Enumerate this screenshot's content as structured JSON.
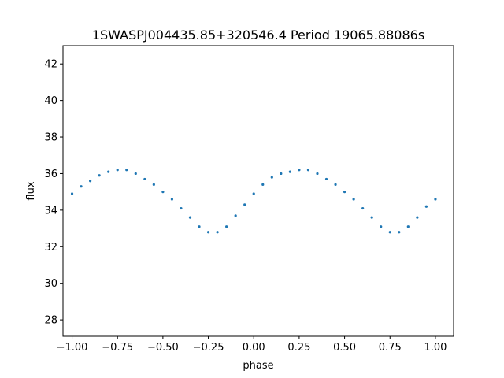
{
  "chart_data": {
    "type": "scatter",
    "title": "1SWASPJ004435.85+320546.4 Period 19065.88086s",
    "xlabel": "phase",
    "ylabel": "flux",
    "xlim": [
      -1.05,
      1.1
    ],
    "ylim": [
      27.1,
      43.0
    ],
    "x_ticks": [
      -1.0,
      -0.75,
      -0.5,
      -0.25,
      0.0,
      0.25,
      0.5,
      0.75,
      1.0
    ],
    "x_tick_labels": [
      "−1.00",
      "−0.75",
      "−0.50",
      "−0.25",
      "0.00",
      "0.25",
      "0.50",
      "0.75",
      "1.00"
    ],
    "y_ticks": [
      28,
      30,
      32,
      34,
      36,
      38,
      40,
      42
    ],
    "y_tick_labels": [
      "28",
      "30",
      "32",
      "34",
      "36",
      "38",
      "40",
      "42"
    ],
    "grid": false,
    "point_color": "#1f77b4",
    "series": [
      {
        "x": [
          -1.0,
          -0.95,
          -0.9,
          -0.85,
          -0.8,
          -0.75,
          -0.7,
          -0.65,
          -0.6,
          -0.55,
          -0.5,
          -0.45,
          -0.4,
          -0.35,
          -0.3,
          -0.25,
          -0.2,
          -0.15,
          -0.1,
          -0.05,
          0.0,
          0.05,
          0.1,
          0.15,
          0.2,
          0.25,
          0.3,
          0.35,
          0.4,
          0.45,
          0.5,
          0.55,
          0.6,
          0.65,
          0.7,
          0.75,
          0.8,
          0.85,
          0.9,
          0.95,
          1.0
        ],
        "y": [
          34.9,
          35.3,
          35.6,
          35.9,
          36.1,
          36.2,
          36.2,
          36.0,
          35.7,
          35.4,
          35.0,
          34.6,
          34.1,
          33.6,
          33.1,
          32.8,
          32.8,
          33.1,
          33.7,
          34.3,
          34.9,
          35.4,
          35.8,
          36.0,
          36.1,
          36.2,
          36.2,
          36.0,
          35.7,
          35.4,
          35.0,
          34.6,
          34.1,
          33.6,
          33.1,
          32.8,
          32.8,
          33.1,
          33.6,
          34.2,
          34.6
        ]
      }
    ]
  }
}
